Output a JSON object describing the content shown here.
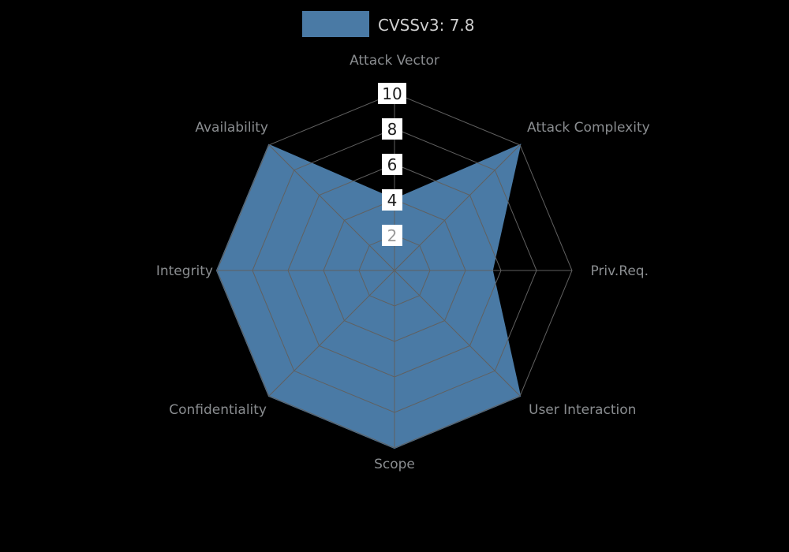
{
  "legend": {
    "label": "CVSSv3: 7.8",
    "color": "#4a7aa5"
  },
  "chart_data": {
    "type": "radar",
    "title": "CVSSv3: 7.8",
    "axes": [
      "Attack Vector",
      "Attack Complexity",
      "Priv.Req.",
      "User Interaction",
      "Scope",
      "Confidentiality",
      "Integrity",
      "Availability"
    ],
    "series": [
      {
        "name": "CVSSv3: 7.8",
        "values": [
          4,
          10,
          5.5,
          10,
          10,
          10,
          10,
          10
        ],
        "color": "#4a7aa5"
      }
    ],
    "ticks": [
      10,
      8,
      6,
      4,
      2
    ],
    "rmax": 10,
    "grid": true,
    "legend_position": "top"
  }
}
